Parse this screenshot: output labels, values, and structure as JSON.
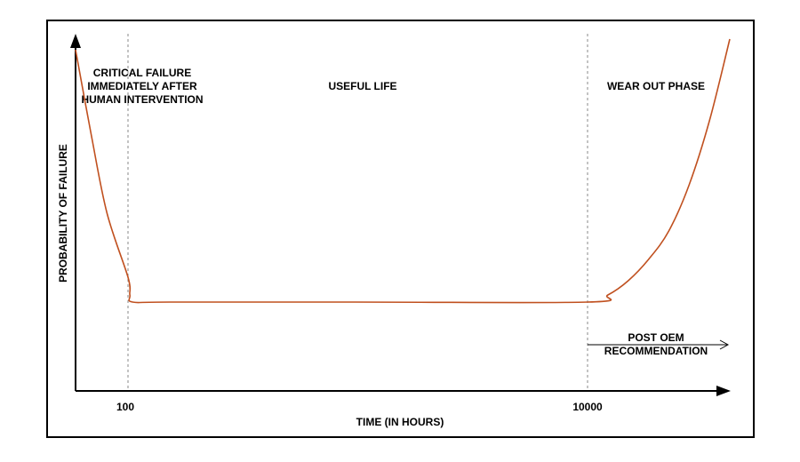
{
  "chart_data": {
    "type": "line",
    "title": "",
    "xlabel": "TIME (IN HOURS)",
    "ylabel": "PROBABILITY OF FAILURE",
    "x_ticks": [
      "100",
      "10000"
    ],
    "regions": [
      {
        "label_lines": [
          "CRITICAL FAILURE",
          "IMMEDIATELY AFTER",
          "HUMAN INTERVENTION"
        ]
      },
      {
        "label_lines": [
          "USEFUL LIFE"
        ]
      },
      {
        "label_lines": [
          "WEAR OUT PHASE"
        ]
      }
    ],
    "annotation": {
      "label_lines": [
        "POST OEM",
        "RECOMMENDATION"
      ]
    },
    "series": [
      {
        "color": "#c0501f",
        "points": [
          [
            0,
            0.96
          ],
          [
            30,
            0.72
          ],
          [
            60,
            0.5
          ],
          [
            100,
            0.32
          ],
          [
            140,
            0.27
          ],
          [
            200,
            0.25
          ],
          [
            1000,
            0.25
          ],
          [
            5000,
            0.25
          ],
          [
            10000,
            0.25
          ],
          [
            10400,
            0.27
          ],
          [
            10800,
            0.31
          ],
          [
            11200,
            0.37
          ],
          [
            11600,
            0.45
          ],
          [
            12000,
            0.58
          ],
          [
            12400,
            0.76
          ],
          [
            12800,
            0.99
          ]
        ]
      }
    ],
    "grid": false
  },
  "colors": {
    "curve": "#c0501f",
    "axis": "#000000",
    "divider": "#888888"
  }
}
